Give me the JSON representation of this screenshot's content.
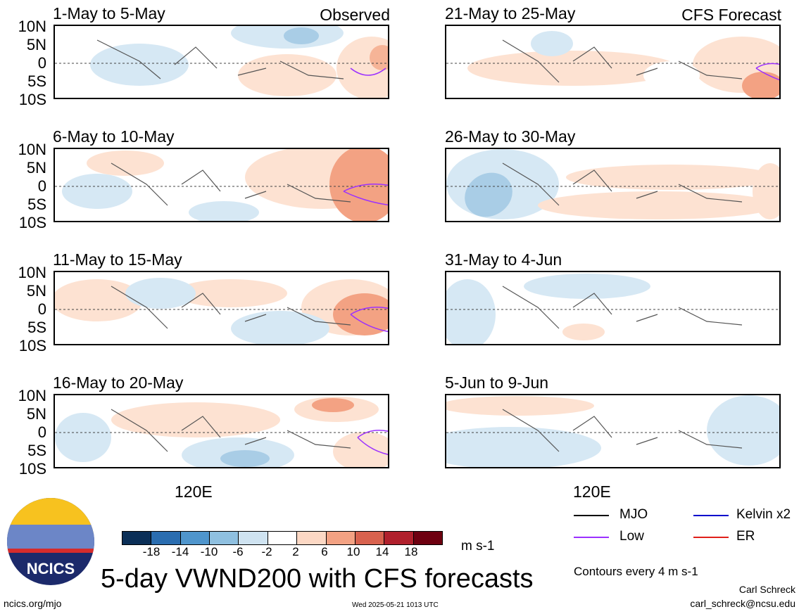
{
  "panels_observed": [
    {
      "title": "1-May to 5-May",
      "tag": "Observed"
    },
    {
      "title": "6-May to 10-May",
      "tag": ""
    },
    {
      "title": "11-May to 15-May",
      "tag": ""
    },
    {
      "title": "16-May to 20-May",
      "tag": ""
    }
  ],
  "panels_forecast": [
    {
      "title": "21-May to 25-May",
      "tag": "CFS Forecast"
    },
    {
      "title": "26-May to 30-May",
      "tag": ""
    },
    {
      "title": "31-May to 4-Jun",
      "tag": ""
    },
    {
      "title": "5-Jun to 9-Jun",
      "tag": ""
    }
  ],
  "lat_labels": [
    "10N",
    "5N",
    "0",
    "5S",
    "10S"
  ],
  "lon_label": "120E",
  "colorbar": {
    "ticks": [
      "-18",
      "-14",
      "-10",
      "-6",
      "-2",
      "2",
      "6",
      "10",
      "14",
      "18"
    ],
    "colors": [
      "#0b2f57",
      "#2a6db0",
      "#4f95cc",
      "#8fc0e0",
      "#cfe3f1",
      "#ffffff",
      "#fcd8c4",
      "#f3a283",
      "#d8624e",
      "#b0202c",
      "#6e0010"
    ],
    "units": "m s-1"
  },
  "legend": {
    "mjo": "MJO",
    "kelvin": "Kelvin x2",
    "low": "Low",
    "er": "ER",
    "mjo_color": "#000000",
    "kelvin_color": "#0000cc",
    "low_color": "#9b30ff",
    "er_color": "#e0201a",
    "contours": "Contours every 4 m s-1"
  },
  "logo_text": "NCICS",
  "main_title": "5-day VWND200 with CFS forecasts",
  "footer": {
    "url": "ncics.org/mjo",
    "timestamp": "Wed 2025-05-21 1013 UTC",
    "author": "Carl Schreck",
    "email": "carl_schreck@ncsu.edu"
  }
}
